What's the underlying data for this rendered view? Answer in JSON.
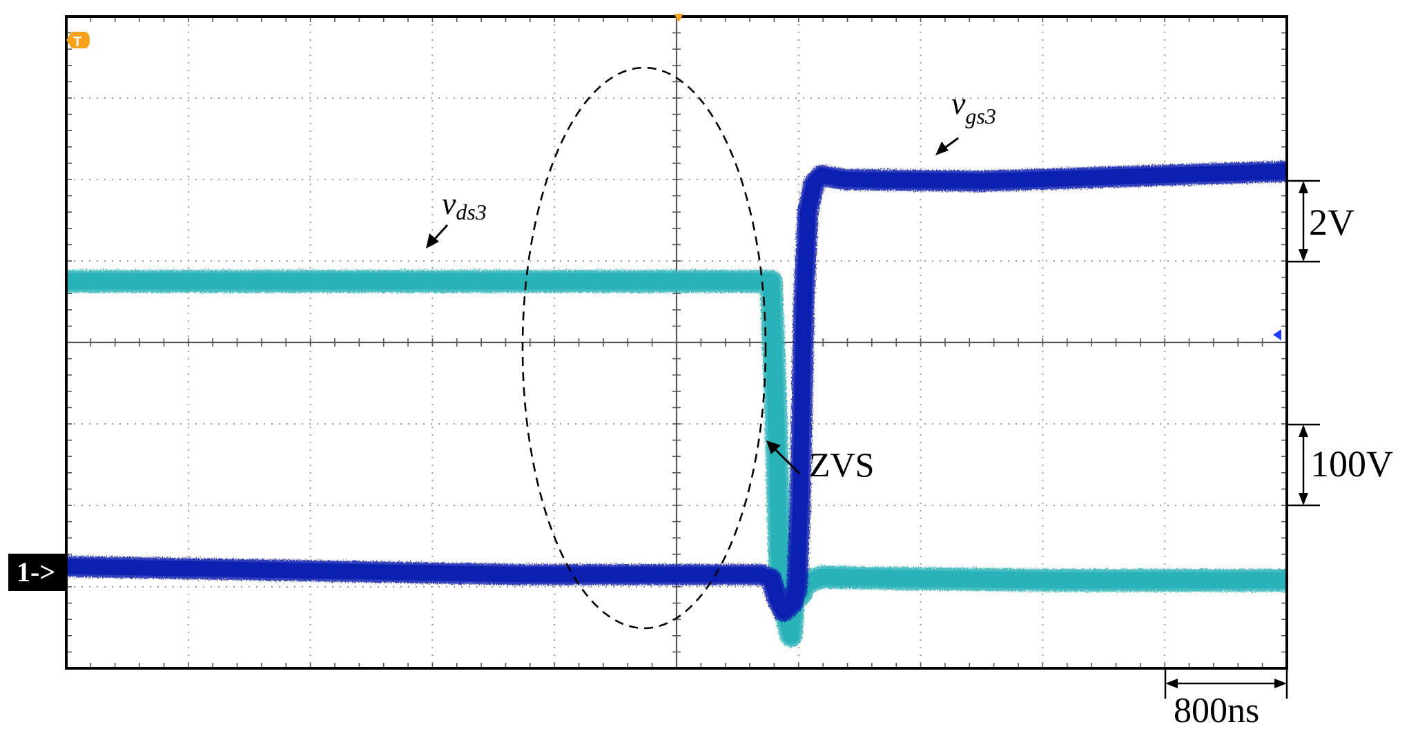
{
  "chart_data": {
    "type": "line",
    "title": "",
    "xlabel": "",
    "ylabel": "",
    "x_div_count": 10,
    "y_div_count": 8,
    "grid": true,
    "grid_style": "dotted",
    "x_range_ns": [
      0,
      8000
    ],
    "y_range_div": [
      -4,
      4
    ],
    "series": [
      {
        "name": "v_ds3",
        "color": "#29b3b8",
        "thickness_div": 0.28,
        "units": "divisions",
        "points": [
          [
            0,
            0.75
          ],
          [
            4620,
            0.75
          ],
          [
            4650,
            -0.8
          ],
          [
            4680,
            -3.0
          ],
          [
            4720,
            -3.35
          ],
          [
            4750,
            -3.6
          ],
          [
            4770,
            -3.1
          ],
          [
            4810,
            -3.1
          ],
          [
            4850,
            -2.95
          ],
          [
            4950,
            -2.88
          ],
          [
            5500,
            -2.9
          ],
          [
            6500,
            -2.92
          ],
          [
            8000,
            -2.92
          ]
        ]
      },
      {
        "name": "v_gs3",
        "color": "#0b1fb0",
        "thickness_div": 0.26,
        "units": "divisions",
        "points": [
          [
            0,
            -2.75
          ],
          [
            1500,
            -2.8
          ],
          [
            3000,
            -2.85
          ],
          [
            4550,
            -2.85
          ],
          [
            4620,
            -2.9
          ],
          [
            4660,
            -3.15
          ],
          [
            4700,
            -3.3
          ],
          [
            4760,
            -3.2
          ],
          [
            4790,
            -3.0
          ],
          [
            4810,
            -2.0
          ],
          [
            4835,
            0.5
          ],
          [
            4860,
            1.6
          ],
          [
            4900,
            1.95
          ],
          [
            4950,
            2.05
          ],
          [
            5100,
            2.0
          ],
          [
            6000,
            1.98
          ],
          [
            8000,
            2.1
          ]
        ]
      }
    ],
    "annotations": [
      {
        "id": "vds",
        "base": "v",
        "subscript": "ds3"
      },
      {
        "id": "vgs",
        "base": "v",
        "subscript": "gs3"
      },
      {
        "id": "zvs",
        "text": "ZVS"
      }
    ],
    "scale_bars": {
      "voltage_gs": "2V",
      "voltage_ds": "100V",
      "time": "800ns"
    },
    "markers": {
      "channel": "1->",
      "trigger": "T"
    },
    "colors": {
      "frame": "#000000",
      "grid": "#9a9a9a",
      "trigger_marker": "#f7a21b",
      "ground_marker": "#1e3cff"
    }
  }
}
